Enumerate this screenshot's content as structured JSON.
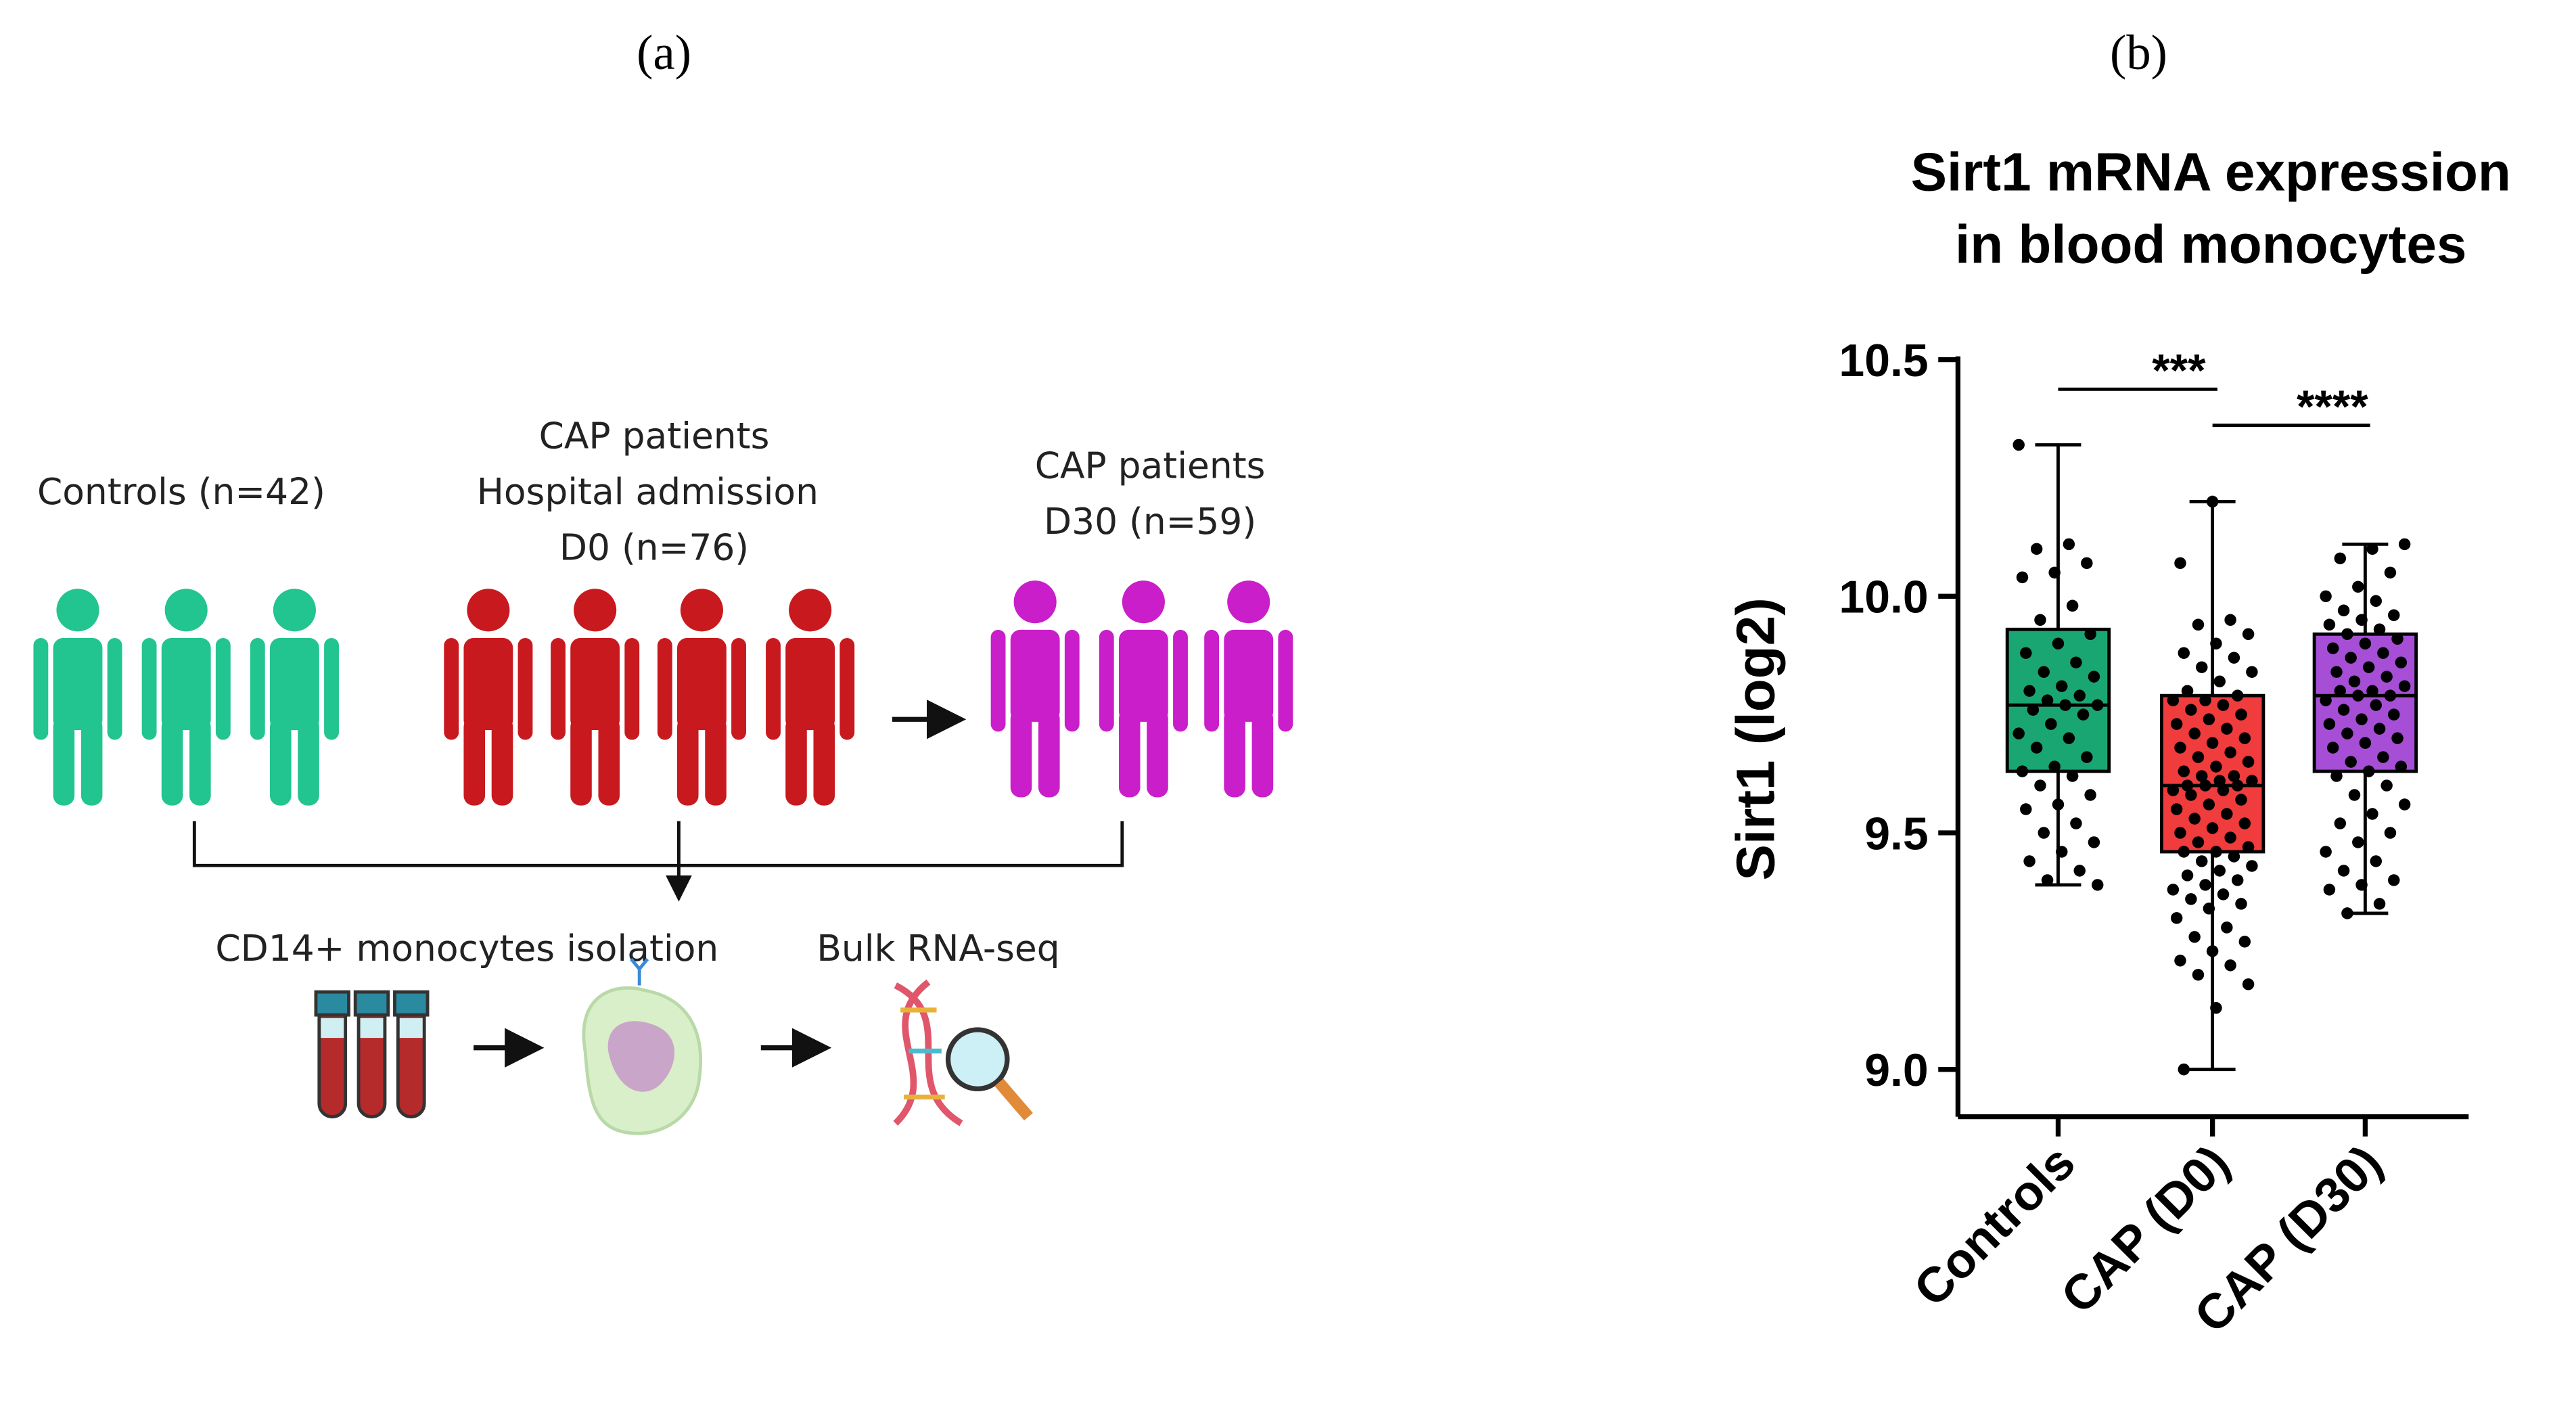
{
  "panel_labels": [
    "(a)",
    "(b)"
  ],
  "diagram": {
    "groups": [
      {
        "label_lines": [
          "Controls (n=42)"
        ]
      },
      {
        "label_lines": [
          "CAP patients",
          "Hospital admission",
          "D0 (n=76)"
        ]
      },
      {
        "label_lines": [
          "CAP patients",
          "D30 (n=59)"
        ]
      }
    ],
    "steps": [
      "CD14+ monocytes isolation",
      "Bulk RNA-seq"
    ]
  },
  "chart_data": {
    "type": "box",
    "title": [
      "Sirt1 mRNA expression",
      "in blood monocytes"
    ],
    "y_label": "Sirt1 (log2)",
    "categories": [
      "Controls",
      "CAP (D0)",
      "CAP (D30)"
    ],
    "colors": [
      "#1aa672",
      "#f03c3c",
      "#a64fd6"
    ],
    "whisker_low": [
      9.39,
      9.0,
      9.33
    ],
    "q1": [
      9.63,
      9.46,
      9.63
    ],
    "median": [
      9.77,
      9.6,
      9.79
    ],
    "q3": [
      9.93,
      9.79,
      9.92
    ],
    "whisker_high": [
      10.32,
      10.2,
      10.11
    ],
    "points": [
      [
        10.32,
        10.11,
        10.1,
        10.07,
        10.05,
        10.04,
        9.98,
        9.95,
        9.92,
        9.9,
        9.88,
        9.86,
        9.84,
        9.83,
        9.81,
        9.8,
        9.79,
        9.78,
        9.77,
        9.77,
        9.76,
        9.75,
        9.73,
        9.71,
        9.7,
        9.68,
        9.66,
        9.64,
        9.63,
        9.62,
        9.6,
        9.58,
        9.56,
        9.55,
        9.52,
        9.5,
        9.48,
        9.46,
        9.44,
        9.42,
        9.4,
        9.39
      ],
      [
        10.2,
        10.07,
        9.95,
        9.94,
        9.92,
        9.9,
        9.88,
        9.87,
        9.85,
        9.84,
        9.82,
        9.8,
        9.79,
        9.78,
        9.78,
        9.77,
        9.76,
        9.75,
        9.74,
        9.73,
        9.72,
        9.71,
        9.7,
        9.69,
        9.68,
        9.67,
        9.66,
        9.65,
        9.64,
        9.63,
        9.62,
        9.62,
        9.61,
        9.61,
        9.6,
        9.6,
        9.6,
        9.59,
        9.59,
        9.58,
        9.57,
        9.56,
        9.55,
        9.54,
        9.53,
        9.52,
        9.51,
        9.5,
        9.49,
        9.48,
        9.47,
        9.46,
        9.46,
        9.45,
        9.44,
        9.43,
        9.42,
        9.41,
        9.4,
        9.39,
        9.38,
        9.37,
        9.36,
        9.35,
        9.34,
        9.32,
        9.3,
        9.28,
        9.27,
        9.25,
        9.23,
        9.22,
        9.2,
        9.18,
        9.13,
        9.0
      ],
      [
        10.11,
        10.1,
        10.08,
        10.05,
        10.02,
        10.0,
        9.99,
        9.97,
        9.96,
        9.95,
        9.94,
        9.93,
        9.92,
        9.91,
        9.9,
        9.89,
        9.88,
        9.87,
        9.86,
        9.85,
        9.84,
        9.83,
        9.82,
        9.81,
        9.8,
        9.8,
        9.79,
        9.79,
        9.78,
        9.77,
        9.76,
        9.75,
        9.74,
        9.73,
        9.72,
        9.71,
        9.7,
        9.69,
        9.68,
        9.66,
        9.65,
        9.64,
        9.63,
        9.62,
        9.6,
        9.58,
        9.56,
        9.54,
        9.52,
        9.5,
        9.48,
        9.46,
        9.44,
        9.42,
        9.4,
        9.39,
        9.38,
        9.35,
        9.33
      ]
    ],
    "ylim": [
      8.9,
      10.5
    ],
    "yticks": [
      {
        "value": 9,
        "label": "9.0"
      },
      9.5,
      {
        "value": 10,
        "label": "10.0"
      },
      10.5
    ],
    "annotations": [
      {
        "text": "***",
        "from": "Controls",
        "to": "CAP (D0)"
      },
      {
        "text": "****",
        "from": "CAP (D0)",
        "to": "CAP (D30)"
      }
    ]
  }
}
